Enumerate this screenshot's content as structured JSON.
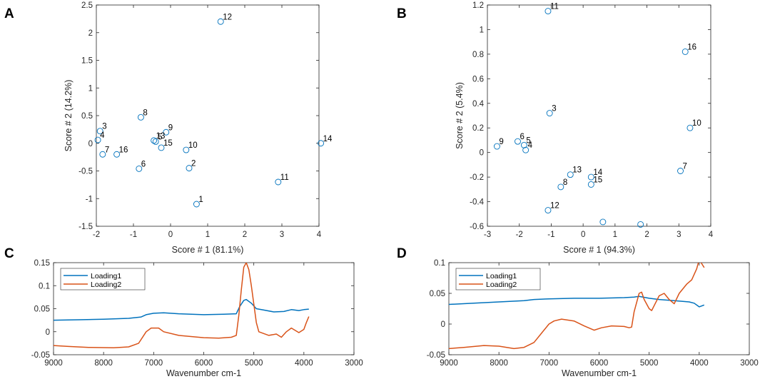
{
  "chart_data": [
    {
      "panel": "A",
      "type": "scatter",
      "xlabel": "Score # 1 (81.1%)",
      "ylabel": "Score # 2 (14.2%)",
      "xlim": [
        -2,
        4
      ],
      "ylim": [
        -1.5,
        2.5
      ],
      "xticks": [
        "-2",
        "-1",
        "0",
        "1",
        "2",
        "3",
        "4"
      ],
      "yticks": [
        "-1.5",
        "-1",
        "-0.5",
        "0",
        "0.5",
        "1",
        "1.5",
        "2",
        "2.5"
      ],
      "marker_color": "#0072BD",
      "points": [
        {
          "label": "1",
          "x": 0.7,
          "y": -1.1
        },
        {
          "label": "2",
          "x": 0.5,
          "y": -0.45
        },
        {
          "label": "3",
          "x": -1.9,
          "y": 0.22
        },
        {
          "label": "4",
          "x": -1.96,
          "y": 0.06
        },
        {
          "label": "5",
          "x": -0.4,
          "y": 0.03
        },
        {
          "label": "6",
          "x": -0.85,
          "y": -0.46
        },
        {
          "label": "7",
          "x": -1.83,
          "y": -0.2
        },
        {
          "label": "8",
          "x": -0.8,
          "y": 0.47
        },
        {
          "label": "9",
          "x": -0.12,
          "y": 0.2
        },
        {
          "label": "10",
          "x": 0.42,
          "y": -0.12
        },
        {
          "label": "11",
          "x": 2.9,
          "y": -0.7
        },
        {
          "label": "12",
          "x": 1.35,
          "y": 2.2
        },
        {
          "label": "13",
          "x": -0.45,
          "y": 0.05
        },
        {
          "label": "14",
          "x": 4.05,
          "y": 0.0
        },
        {
          "label": "15",
          "x": -0.25,
          "y": -0.08
        },
        {
          "label": "16",
          "x": -1.45,
          "y": -0.2
        }
      ]
    },
    {
      "panel": "B",
      "type": "scatter",
      "xlabel": "Score # 1 (94.3%)",
      "ylabel": "Score # 2 (5.4%)",
      "xlim": [
        -3,
        4
      ],
      "ylim": [
        -0.6,
        1.2
      ],
      "xticks": [
        "-3",
        "-2",
        "-1",
        "0",
        "1",
        "2",
        "3",
        "4"
      ],
      "yticks": [
        "-0.6",
        "-0.4",
        "-0.2",
        "0",
        "0.2",
        "0.4",
        "0.6",
        "0.8",
        "1",
        "1.2"
      ],
      "marker_color": "#0072BD",
      "points": [
        {
          "label": "3",
          "x": -1.05,
          "y": 0.32
        },
        {
          "label": "4",
          "x": -1.8,
          "y": 0.02
        },
        {
          "label": "5",
          "x": -1.85,
          "y": 0.06
        },
        {
          "label": "6",
          "x": -2.05,
          "y": 0.09
        },
        {
          "label": "7",
          "x": 3.05,
          "y": -0.15
        },
        {
          "label": "8",
          "x": -0.7,
          "y": -0.28
        },
        {
          "label": "9",
          "x": -2.7,
          "y": 0.05
        },
        {
          "label": "10",
          "x": 3.35,
          "y": 0.2
        },
        {
          "label": "11",
          "x": -1.1,
          "y": 1.15
        },
        {
          "label": "12",
          "x": -1.1,
          "y": -0.47
        },
        {
          "label": "13",
          "x": -0.4,
          "y": -0.18
        },
        {
          "label": "14",
          "x": 0.25,
          "y": -0.2
        },
        {
          "label": "15",
          "x": 0.25,
          "y": -0.26
        },
        {
          "label": "16",
          "x": 3.2,
          "y": 0.82
        },
        {
          "label": "",
          "x": 0.62,
          "y": -0.565
        },
        {
          "label": "",
          "x": 1.8,
          "y": -0.585
        }
      ]
    },
    {
      "panel": "C",
      "type": "line",
      "xlabel": "Wavenumber cm-1",
      "ylabel": "",
      "xlim": [
        9000,
        3000
      ],
      "ylim": [
        -0.05,
        0.15
      ],
      "xticks": [
        "9000",
        "8000",
        "7000",
        "6000",
        "5000",
        "4000",
        "3000"
      ],
      "yticks": [
        "-0.05",
        "0",
        "0.05",
        "0.1",
        "0.15"
      ],
      "legend": "top-left",
      "series": [
        {
          "name": "Loading1",
          "color": "#0072BD",
          "points": [
            [
              9000,
              0.025
            ],
            [
              8500,
              0.026
            ],
            [
              8000,
              0.027
            ],
            [
              7500,
              0.029
            ],
            [
              7250,
              0.032
            ],
            [
              7150,
              0.037
            ],
            [
              7000,
              0.04
            ],
            [
              6800,
              0.041
            ],
            [
              6500,
              0.039
            ],
            [
              6000,
              0.037
            ],
            [
              5600,
              0.038
            ],
            [
              5350,
              0.039
            ],
            [
              5280,
              0.055
            ],
            [
              5200,
              0.068
            ],
            [
              5150,
              0.07
            ],
            [
              5050,
              0.062
            ],
            [
              4950,
              0.05
            ],
            [
              4800,
              0.047
            ],
            [
              4600,
              0.043
            ],
            [
              4400,
              0.044
            ],
            [
              4250,
              0.048
            ],
            [
              4100,
              0.046
            ],
            [
              4000,
              0.048
            ],
            [
              3900,
              0.049
            ]
          ]
        },
        {
          "name": "Loading2",
          "color": "#D95319",
          "points": [
            [
              9000,
              -0.03
            ],
            [
              8700,
              -0.032
            ],
            [
              8300,
              -0.034
            ],
            [
              7800,
              -0.035
            ],
            [
              7500,
              -0.033
            ],
            [
              7300,
              -0.025
            ],
            [
              7150,
              0.0
            ],
            [
              7050,
              0.008
            ],
            [
              6900,
              0.008
            ],
            [
              6800,
              0.0
            ],
            [
              6500,
              -0.008
            ],
            [
              6000,
              -0.013
            ],
            [
              5700,
              -0.014
            ],
            [
              5450,
              -0.012
            ],
            [
              5350,
              -0.008
            ],
            [
              5300,
              0.035
            ],
            [
              5250,
              0.09
            ],
            [
              5200,
              0.14
            ],
            [
              5150,
              0.15
            ],
            [
              5100,
              0.135
            ],
            [
              5050,
              0.1
            ],
            [
              5000,
              0.06
            ],
            [
              4950,
              0.02
            ],
            [
              4900,
              0.0
            ],
            [
              4700,
              -0.008
            ],
            [
              4550,
              -0.005
            ],
            [
              4450,
              -0.012
            ],
            [
              4350,
              0.0
            ],
            [
              4250,
              0.008
            ],
            [
              4100,
              -0.002
            ],
            [
              4000,
              0.005
            ],
            [
              3950,
              0.02
            ],
            [
              3900,
              0.033
            ]
          ]
        }
      ]
    },
    {
      "panel": "D",
      "type": "line",
      "xlabel": "Wavenumber cm-1",
      "ylabel": "",
      "xlim": [
        9000,
        3000
      ],
      "ylim": [
        -0.05,
        0.1
      ],
      "xticks": [
        "9000",
        "8000",
        "7000",
        "6000",
        "5000",
        "4000",
        "3000"
      ],
      "yticks": [
        "-0.05",
        "0",
        "0.05",
        "0.1"
      ],
      "legend": "top-left",
      "series": [
        {
          "name": "Loading1",
          "color": "#0072BD",
          "points": [
            [
              9000,
              0.032
            ],
            [
              8500,
              0.034
            ],
            [
              8000,
              0.036
            ],
            [
              7500,
              0.038
            ],
            [
              7300,
              0.04
            ],
            [
              7000,
              0.041
            ],
            [
              6500,
              0.042
            ],
            [
              6000,
              0.042
            ],
            [
              5500,
              0.043
            ],
            [
              5300,
              0.044
            ],
            [
              5200,
              0.045
            ],
            [
              5000,
              0.042
            ],
            [
              4800,
              0.04
            ],
            [
              4500,
              0.038
            ],
            [
              4200,
              0.036
            ],
            [
              4100,
              0.034
            ],
            [
              4000,
              0.028
            ],
            [
              3900,
              0.031
            ]
          ]
        },
        {
          "name": "Loading2",
          "color": "#D95319",
          "points": [
            [
              9000,
              -0.04
            ],
            [
              8700,
              -0.038
            ],
            [
              8300,
              -0.035
            ],
            [
              8000,
              -0.036
            ],
            [
              7700,
              -0.04
            ],
            [
              7500,
              -0.038
            ],
            [
              7300,
              -0.03
            ],
            [
              7150,
              -0.015
            ],
            [
              7000,
              0.0
            ],
            [
              6900,
              0.005
            ],
            [
              6750,
              0.008
            ],
            [
              6500,
              0.005
            ],
            [
              6300,
              -0.003
            ],
            [
              6100,
              -0.01
            ],
            [
              5950,
              -0.006
            ],
            [
              5750,
              -0.003
            ],
            [
              5500,
              -0.004
            ],
            [
              5400,
              -0.006
            ],
            [
              5350,
              -0.005
            ],
            [
              5300,
              0.02
            ],
            [
              5200,
              0.05
            ],
            [
              5150,
              0.052
            ],
            [
              5100,
              0.04
            ],
            [
              5000,
              0.025
            ],
            [
              4950,
              0.022
            ],
            [
              4900,
              0.03
            ],
            [
              4800,
              0.046
            ],
            [
              4700,
              0.05
            ],
            [
              4600,
              0.04
            ],
            [
              4500,
              0.033
            ],
            [
              4400,
              0.05
            ],
            [
              4300,
              0.06
            ],
            [
              4250,
              0.065
            ],
            [
              4150,
              0.072
            ],
            [
              4050,
              0.09
            ],
            [
              4000,
              0.105
            ],
            [
              3900,
              0.092
            ]
          ]
        }
      ]
    }
  ]
}
